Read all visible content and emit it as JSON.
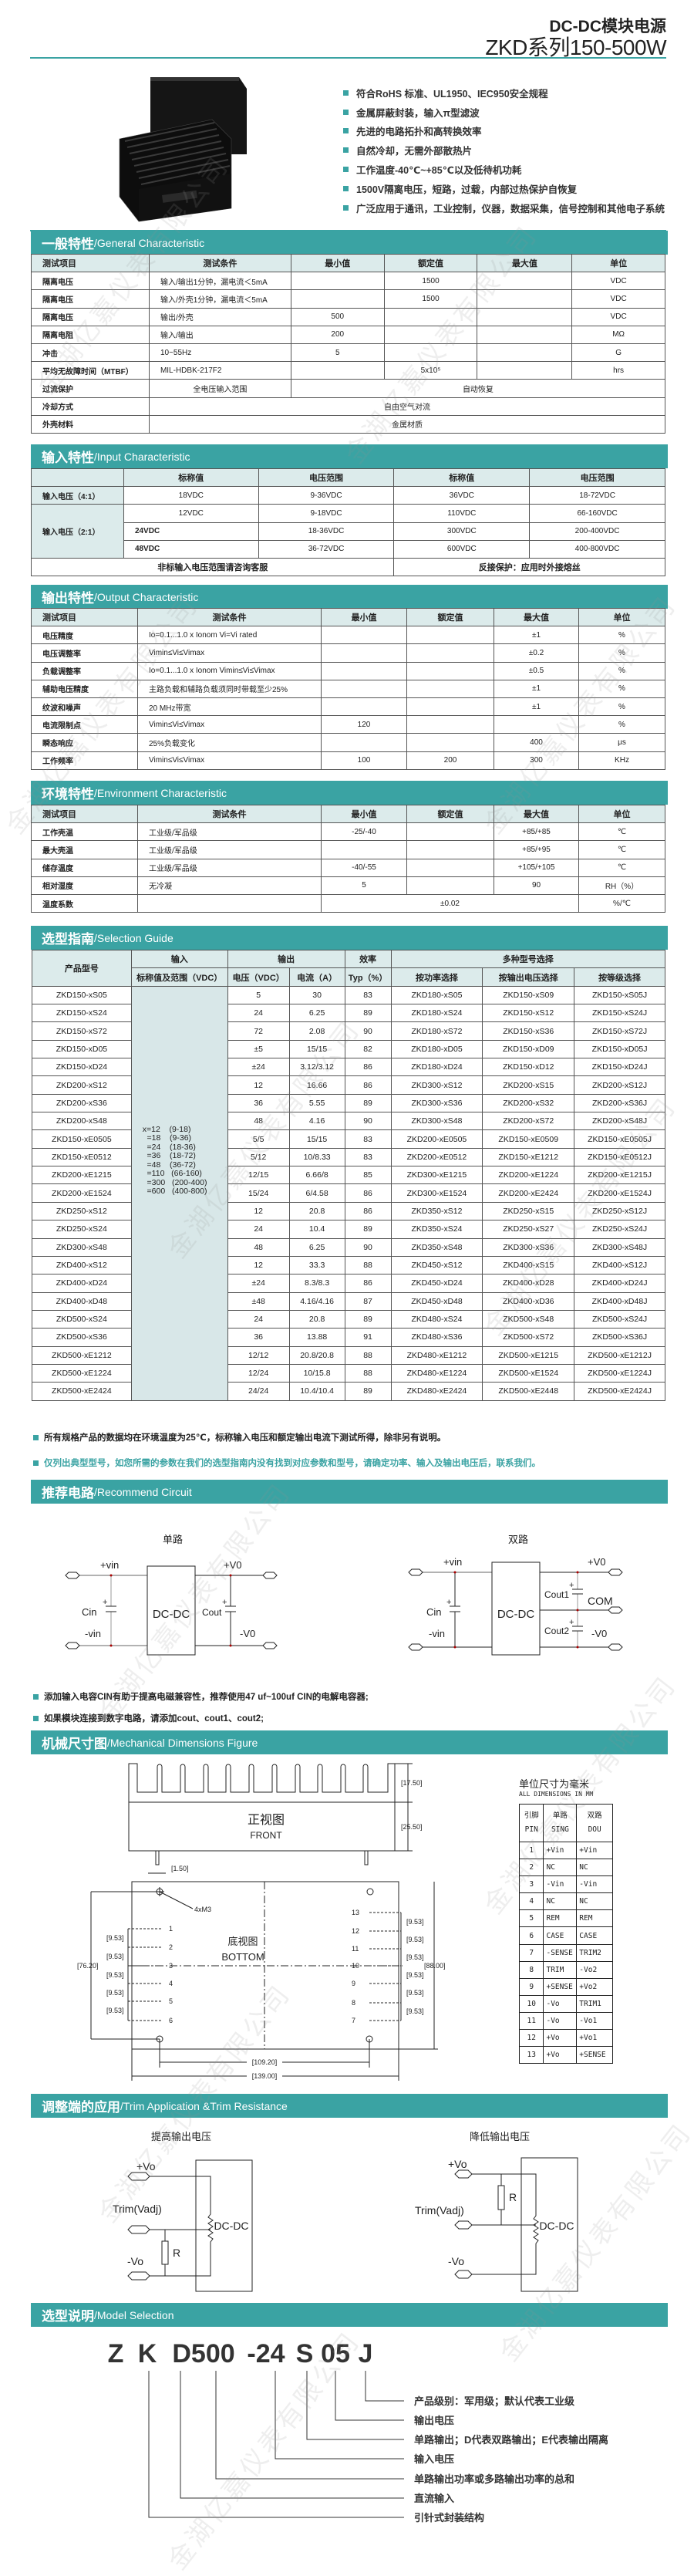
{
  "watermark": "金湖亿嘉仪表有限公司",
  "header": {
    "title": "DC-DC模块电源",
    "subtitle": "ZKD系列150-500W"
  },
  "features": [
    "符合RoHS 标准、UL1950、IEC950安全规程",
    "金属屏蔽封装，输入π型滤波",
    "先进的电路拓扑和高转换效率",
    "自然冷却，无需外部散热片",
    "工作温度-40℃~+85℃以及低待机功耗",
    "1500V隔离电压，短路，过载，内部过热保护自恢复",
    "广泛应用于通讯，工业控制，仪器，数据采集，信号控制和其他电子系统"
  ],
  "colors": {
    "accent": "#3aa3a3",
    "table_header_bg": "#dcebeb"
  },
  "general": {
    "title_cn": "一般特性",
    "title_en": "/General Characteristic",
    "header": [
      "测试项目",
      "测试条件",
      "最小值",
      "额定值",
      "最大值",
      "单位"
    ],
    "rows": [
      [
        "隔离电压",
        "输入/输出1分钟，漏电流＜5mA",
        "",
        "1500",
        "",
        "VDC"
      ],
      [
        "隔离电压",
        "输入/外壳1分钟，漏电流＜5mA",
        "",
        "1500",
        "",
        "VDC"
      ],
      [
        "隔离电压",
        "输出/外壳",
        "500",
        "",
        "",
        "VDC"
      ],
      [
        "隔离电阻",
        "输入/输出",
        "200",
        "",
        "",
        "MΩ"
      ],
      [
        "冲击",
        "10~55Hz",
        "5",
        "",
        "",
        "G"
      ],
      [
        "平均无故障时间（MTBF）",
        "MIL-HDBK-217F2",
        "",
        "5x10⁵",
        "",
        "hrs"
      ],
      [
        "过流保护",
        "全电压输入范围",
        {
          "v": "自动恢复",
          "colspan": 4
        }
      ],
      [
        "冷却方式",
        {
          "v": "自由空气对流",
          "colspan": 5
        }
      ],
      [
        "外壳材料",
        {
          "v": "金属材质",
          "colspan": 5
        }
      ]
    ]
  },
  "input": {
    "title_cn": "输入特性",
    "title_en": "/Input Characteristic",
    "header": [
      "",
      "标称值",
      "电压范围",
      "标称值",
      "电压范围"
    ],
    "rows": [
      [
        {
          "v": "输入电压（4:1）",
          "cls": "c0 sh"
        },
        "18VDC",
        "9-36VDC",
        "36VDC",
        "18-72VDC"
      ],
      [
        {
          "v": "输入电压（2:1）",
          "rowspan": 3,
          "cls": "c0 sh"
        },
        "12VDC",
        "9-18VDC",
        "110VDC",
        "66-160VDC"
      ],
      [
        "24VDC",
        "18-36VDC",
        "300VDC",
        "200-400VDC"
      ],
      [
        "48VDC",
        "36-72VDC",
        "600VDC",
        "400-800VDC"
      ],
      [
        {
          "v": "非标输入电压范围请咨询客服",
          "colspan": 3,
          "cls": "bold"
        },
        {
          "v": "反接保护：应用时外接熔丝",
          "colspan": 2,
          "cls": "bold"
        }
      ]
    ]
  },
  "output": {
    "title_cn": "输出特性",
    "title_en": "/Output Characteristic",
    "header": [
      "测试项目",
      "测试条件",
      "最小值",
      "额定值",
      "最大值",
      "单位"
    ],
    "rows": [
      [
        "电压精度",
        "Io=0.1...1.0 x Ionom Vi=Vi rated",
        "",
        "",
        "±1",
        "%"
      ],
      [
        "电压调整率",
        "Vimin≤Vi≤Vimax",
        "",
        "",
        "±0.2",
        "%"
      ],
      [
        "负载调整率",
        "Io=0.1...1.0 x Ionom Vimin≤Vi≤Vimax",
        "",
        "",
        "±0.5",
        "%"
      ],
      [
        "辅助电压精度",
        "主路负载和辅路负载须同时带载至少25%",
        "",
        "",
        "±1",
        "%"
      ],
      [
        "纹波和噪声",
        "20 MHz带宽",
        "",
        "",
        "±1",
        "%"
      ],
      [
        "电流限制点",
        "Vimin≤Vi≤Vimax",
        "120",
        "",
        "",
        "%"
      ],
      [
        "瞬态响应",
        "25%负载变化",
        "",
        "",
        "400",
        "μs"
      ],
      [
        "工作频率",
        "Vimin≤Vi≤Vimax",
        "100",
        "200",
        "300",
        "KHz"
      ]
    ]
  },
  "environment": {
    "title_cn": "环境特性",
    "title_en": "/Environment Characteristic",
    "header": [
      "测试项目",
      "测试条件",
      "最小值",
      "额定值",
      "最大值",
      "单位"
    ],
    "rows": [
      [
        "工作壳温",
        "工业级/军品级",
        "-25/-40",
        "",
        "+85/+85",
        "℃"
      ],
      [
        "最大壳温",
        "工业级/军品级",
        "",
        "",
        "+85/+95",
        "℃"
      ],
      [
        "储存温度",
        "工业级/军品级",
        "-40/-55",
        "",
        "+105/+105",
        "℃"
      ],
      [
        "相对湿度",
        "无冷凝",
        "5",
        "",
        "90",
        "RH（%）"
      ],
      [
        "温度系数",
        "",
        {
          "v": "±0.02",
          "colspan": 3
        },
        "%/℃"
      ]
    ]
  },
  "selection": {
    "title_cn": "选型指南",
    "title_en": "/Selection Guide",
    "header_rows": [
      [
        {
          "v": "产品型号",
          "rowspan": 2
        },
        "输入",
        {
          "v": "输出",
          "colspan": 2
        },
        "效率",
        {
          "v": "多种型号选择",
          "colspan": 3
        }
      ],
      [
        "标称值及范围（VDC）",
        "电压（VDC）",
        "电流（A）",
        "Typ（%）",
        "按功率选择",
        "按输出电压选择",
        "按等级选择"
      ]
    ],
    "input_legend": [
      "x=12    (9-18)",
      "  =18    (9-36)",
      "  =24    (18-36)",
      "  =36    (18-72)",
      "  =48    (36-72)",
      "  =110   (66-160)",
      "  =300   (200-400)",
      "  =600   (400-800)"
    ],
    "rows": [
      [
        "ZKD150-xS05",
        "5",
        "30",
        "83",
        "ZKD180-xS05",
        "ZKD150-xS09",
        "ZKD150-xS05J"
      ],
      [
        "ZKD150-xS24",
        "24",
        "6.25",
        "89",
        "ZKD180-xS24",
        "ZKD150-xS12",
        "ZKD150-xS24J"
      ],
      [
        "ZKD150-xS72",
        "72",
        "2.08",
        "90",
        "ZKD180-xS72",
        "ZKD150-xS36",
        "ZKD150-xS72J"
      ],
      [
        "ZKD150-xD05",
        "±5",
        "15/15",
        "82",
        "ZKD180-xD05",
        "ZKD150-xD09",
        "ZKD150-xD05J"
      ],
      [
        "ZKD150-xD24",
        "±24",
        "3.12/3.12",
        "86",
        "ZKD180-xD24",
        "ZKD150-xD12",
        "ZKD150-xD24J"
      ],
      [
        "ZKD200-xS12",
        "12",
        "16.66",
        "86",
        "ZKD300-xS12",
        "ZKD200-xS15",
        "ZKD200-xS12J"
      ],
      [
        "ZKD200-xS36",
        "36",
        "5.55",
        "89",
        "ZKD300-xS36",
        "ZKD200-xS32",
        "ZKD200-xS36J"
      ],
      [
        "ZKD200-xS48",
        "48",
        "4.16",
        "90",
        "ZKD300-xS48",
        "ZKD200-xS72",
        "ZKD200-xS48J"
      ],
      [
        "ZKD150-xE0505",
        "5/5",
        "15/15",
        "83",
        "ZKD200-xE0505",
        "ZKD150-xE0509",
        "ZKD150-xE0505J"
      ],
      [
        "ZKD150-xE0512",
        "5/12",
        "10/8.33",
        "83",
        "ZKD200-xE0512",
        "ZKD150-xE1212",
        "ZKD150-xE0512J"
      ],
      [
        "ZKD200-xE1215",
        "12/15",
        "6.66/8",
        "85",
        "ZKD300-xE1215",
        "ZKD200-xE1224",
        "ZKD200-xE1215J"
      ],
      [
        "ZKD200-xE1524",
        "15/24",
        "6/4.58",
        "86",
        "ZKD300-xE1524",
        "ZKD200-xE2424",
        "ZKD200-xE1524J"
      ],
      [
        "ZKD250-xS12",
        "12",
        "20.8",
        "86",
        "ZKD350-xS12",
        "ZKD250-xS15",
        "ZKD250-xS12J"
      ],
      [
        "ZKD250-xS24",
        "24",
        "10.4",
        "89",
        "ZKD350-xS24",
        "ZKD250-xS27",
        "ZKD250-xS24J"
      ],
      [
        "ZKD300-xS48",
        "48",
        "6.25",
        "90",
        "ZKD350-xS48",
        "ZKD300-xS36",
        "ZKD300-xS48J"
      ],
      [
        "ZKD400-xS12",
        "12",
        "33.3",
        "88",
        "ZKD450-xS12",
        "ZKD400-xS15",
        "ZKD400-xS12J"
      ],
      [
        "ZKD400-xD24",
        "±24",
        "8.3/8.3",
        "86",
        "ZKD450-xD24",
        "ZKD400-xD28",
        "ZKD400-xD24J"
      ],
      [
        "ZKD400-xD48",
        "±48",
        "4.16/4.16",
        "87",
        "ZKD450-xD48",
        "ZKD400-xD36",
        "ZKD400-xD48J"
      ],
      [
        "ZKD500-xS24",
        "24",
        "20.8",
        "89",
        "ZKD480-xS24",
        "ZKD500-xS48",
        "ZKD500-xS24J"
      ],
      [
        "ZKD500-xS36",
        "36",
        "13.88",
        "91",
        "ZKD480-xS36",
        "ZKD500-xS72",
        "ZKD500-xS36J"
      ],
      [
        "ZKD500-xE1212",
        "12/12",
        "20.8/20.8",
        "88",
        "ZKD480-xE1212",
        "ZKD500-xE1215",
        "ZKD500-xE1212J"
      ],
      [
        "ZKD500-xE1224",
        "12/24",
        "10/15.8",
        "88",
        "ZKD480-xE1224",
        "ZKD500-xE1524",
        "ZKD500-xE1224J"
      ],
      [
        "ZKD500-xE2424",
        "24/24",
        "10.4/10.4",
        "89",
        "ZKD480-xE2424",
        "ZKD500-xE2448",
        "ZKD500-xE2424J"
      ]
    ],
    "notes": [
      "所有规格产品的数据均在环境温度为25℃，标称输入电压和额定输出电流下测试所得，除非另有说明。",
      "仅列出典型型号，如您所需的参数在我们的选型指南内没有找到对应参数和型号，请确定功率、输入及输出电压后，联系我们。"
    ]
  },
  "circuit": {
    "title_cn": "推荐电路",
    "title_en": "/Recommend Circuit",
    "single": {
      "title": "单路",
      "plus_vin": "+vin",
      "minus_vin": "-vin",
      "plus_vo": "+V0",
      "minus_vo": "-V0",
      "cin": "Cin",
      "cout": "Cout",
      "block": "DC-DC"
    },
    "dual": {
      "title": "双路",
      "plus_vin": "+vin",
      "minus_vin": "-vin",
      "plus_vo": "+V0",
      "minus_vo": "-V0",
      "com": "COM",
      "cin": "Cin",
      "cout1": "Cout1",
      "cout2": "Cout2",
      "block": "DC-DC"
    },
    "notes": [
      "添加输入电容CIN有助于提高电磁兼容性，推荐使用47 uf~100uf CIN的电解电容器;",
      "如果模块连接到数字电路，请添加cout、cout1、cout2;"
    ]
  },
  "mechanical": {
    "title_cn": "机械尺寸图",
    "title_en": "/Mechanical Dimensions Figure",
    "front_cn": "正视图",
    "front_en": "FRONT",
    "bottom_cn": "底视图",
    "bottom_en": "BOTTOM",
    "units_cn": "单位尺寸为毫米",
    "units_en": "ALL DIMENSIONS IN MM",
    "dims": {
      "fin_height": "[17.50]",
      "body_height": "[25.50]",
      "pin_width": "[1.50]",
      "pitch": "[9.53]",
      "pin_span": "[76.20]",
      "height": "[88.00]",
      "hole_span": "[109.20]",
      "length": "[139.00]",
      "mount": "4xM3"
    },
    "pin_table": {
      "header": [
        [
          "引脚",
          "PIN"
        ],
        [
          "单路",
          "SING"
        ],
        [
          "双路",
          "DOU"
        ]
      ],
      "rows": [
        [
          "1",
          "+Vin",
          "+Vin"
        ],
        [
          "2",
          "NC",
          "NC"
        ],
        [
          "3",
          "-Vin",
          "-Vin"
        ],
        [
          "4",
          "NC",
          "NC"
        ],
        [
          "5",
          "REM",
          "REM"
        ],
        [
          "6",
          "CASE",
          "CASE"
        ],
        [
          "7",
          "-SENSE",
          "TRIM2"
        ],
        [
          "8",
          "TRIM",
          "-Vo2"
        ],
        [
          "9",
          "+SENSE",
          "+Vo2"
        ],
        [
          "10",
          "-Vo",
          "TRIM1"
        ],
        [
          "11",
          "-Vo",
          "-Vo1"
        ],
        [
          "12",
          "+Vo",
          "+Vo1"
        ],
        [
          "13",
          "+Vo",
          "+SENSE"
        ]
      ]
    }
  },
  "trim": {
    "title_cn": "调整端的应用",
    "title_en": "/Trim Application &Trim Resistance",
    "increase": {
      "title": "提高输出电压",
      "plus_vo": "+Vo",
      "trim": "Trim(Vadj)",
      "minus_vo": "-Vo",
      "r": "R",
      "block": "DC-DC"
    },
    "decrease": {
      "title": "降低输出电压",
      "plus_vo": "+Vo",
      "trim": "Trim(Vadj)",
      "minus_vo": "-Vo",
      "r": "R",
      "block": "DC-DC"
    }
  },
  "model": {
    "title_cn": "选型说明",
    "title_en": "/Model Selection",
    "code": [
      "Z",
      "K",
      "D500",
      "-24",
      "S",
      "05",
      "J"
    ],
    "legend": [
      "产品级别：军用级；默认代表工业级",
      "输出电压",
      "单路输出；D代表双路输出；E代表输出隔离",
      "输入电压",
      "单路输出功率或多路输出功率的总和",
      "直流输入",
      "引针式封装结构"
    ]
  }
}
